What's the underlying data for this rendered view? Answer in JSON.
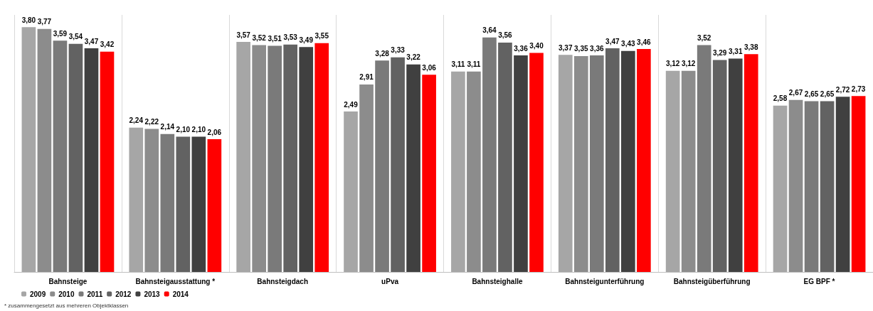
{
  "chart_data": {
    "type": "bar",
    "categories": [
      "Bahnsteige",
      "Bahnsteigausstattung *",
      "Bahnsteigdach",
      "uPva",
      "Bahnsteighalle",
      "Bahnsteigunterführung",
      "Bahnsteigüberführung",
      "EG BPF *"
    ],
    "series": [
      {
        "name": "2009",
        "color": "#a6a6a6",
        "values": [
          3.8,
          2.24,
          3.57,
          2.49,
          3.11,
          3.37,
          3.12,
          2.58
        ],
        "value_labels": [
          "3,80",
          "2,24",
          "3,57",
          "2,49",
          "3,11",
          "3,37",
          "3,12",
          "2,58"
        ]
      },
      {
        "name": "2010",
        "color": "#8c8c8c",
        "values": [
          3.77,
          2.22,
          3.52,
          2.91,
          3.11,
          3.35,
          3.12,
          2.67
        ],
        "value_labels": [
          "3,77",
          "2,22",
          "3,52",
          "2,91",
          "3,11",
          "3,35",
          "3,12",
          "2,67"
        ]
      },
      {
        "name": "2011",
        "color": "#7a7a7a",
        "values": [
          3.59,
          2.14,
          3.51,
          3.28,
          3.64,
          3.36,
          3.52,
          2.65
        ],
        "value_labels": [
          "3,59",
          "2,14",
          "3,51",
          "3,28",
          "3,64",
          "3,36",
          "3,52",
          "2,65"
        ]
      },
      {
        "name": "2012",
        "color": "#626262",
        "values": [
          3.54,
          2.1,
          3.53,
          3.33,
          3.56,
          3.47,
          3.29,
          2.65
        ],
        "value_labels": [
          "3,54",
          "2,10",
          "3,53",
          "3,33",
          "3,56",
          "3,47",
          "3,29",
          "2,65"
        ]
      },
      {
        "name": "2013",
        "color": "#404040",
        "values": [
          3.47,
          2.1,
          3.49,
          3.22,
          3.36,
          3.43,
          3.31,
          2.72
        ],
        "value_labels": [
          "3,47",
          "2,10",
          "3,49",
          "3,22",
          "3,36",
          "3,43",
          "3,31",
          "2,72"
        ]
      },
      {
        "name": "2014",
        "color": "#ff0000",
        "values": [
          3.42,
          2.06,
          3.55,
          3.06,
          3.4,
          3.46,
          3.38,
          2.73
        ],
        "value_labels": [
          "3,42",
          "2,06",
          "3,55",
          "3,06",
          "3,40",
          "3,46",
          "3,38",
          "2,73"
        ]
      }
    ],
    "legend": "bottom left",
    "grid": false,
    "annotations": [
      "* zusammengesetzt aus mehreren Objektklassen"
    ]
  }
}
